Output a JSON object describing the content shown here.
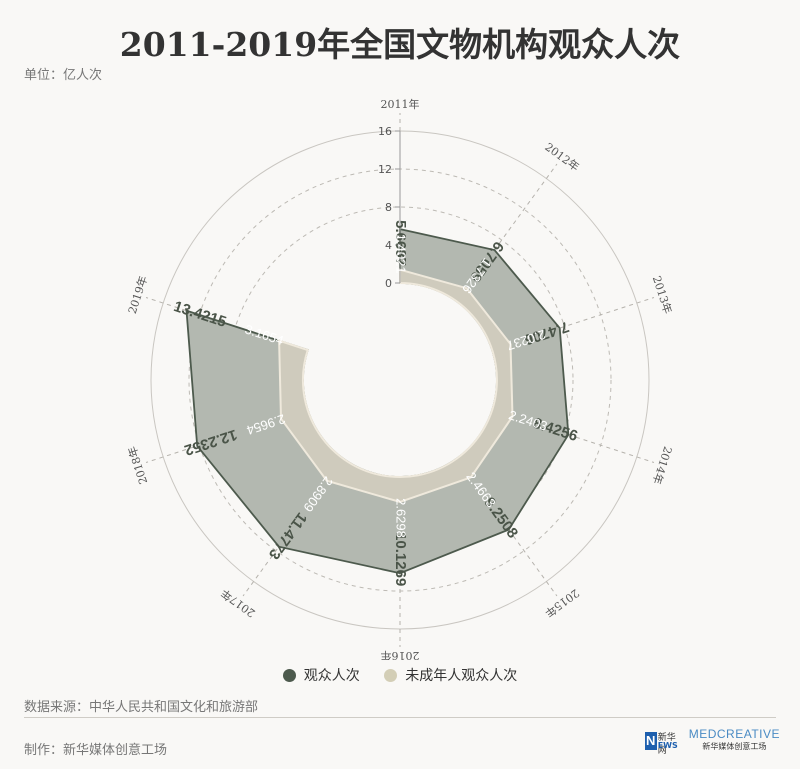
{
  "title": "2011-2019年全国文物机构观众人次",
  "unit": "单位：亿人次",
  "legend": {
    "series1": "观众人次",
    "series2": "未成年人观众人次"
  },
  "source": "数据来源：中华人民共和国文化和旅游部",
  "maker": "制作：新华媒体创意工场",
  "logos": {
    "news_text": "新华网",
    "news_letter": "N",
    "news_sub": "EWS",
    "media_big": "MEDCREATIVE",
    "media_small": "新华媒体创意工场"
  },
  "colors": {
    "total_fill": "#b3b8b0",
    "total_stroke": "#4d5a4d",
    "minor_fill": "#cfcbbd",
    "minor_stroke": "#efe9dc",
    "legend_total": "#4d5a4d",
    "legend_minor": "#d3ceb6"
  },
  "chart_data": {
    "type": "radial bar",
    "categories": [
      "2011年",
      "2012年",
      "2013年",
      "2014年",
      "2015年",
      "2016年",
      "2017年",
      "2018年",
      "2019年"
    ],
    "series": [
      {
        "name": "观众人次",
        "values": [
          5.6687,
          6.7059,
          7.4706,
          8.4256,
          9.2508,
          10.1269,
          11.4773,
          12.2352,
          13.4215
        ]
      },
      {
        "name": "未成年人观众人次",
        "values": [
          1.4021,
          1.7326,
          2.0237,
          2.2403,
          2.4663,
          2.6298,
          2.8909,
          2.9654,
          3.1654
        ]
      }
    ],
    "value_labels": {
      "total": [
        "5.6687",
        "6.7059",
        "7.4706",
        "8.4256",
        "9.2508",
        "10.1269",
        "11.4773",
        "12.2352",
        "13.4215"
      ],
      "minor": [
        "1.4021",
        "1.7326",
        "2.0237",
        "2.2403",
        "2.4663",
        "2.6298",
        "2.8909",
        "2.9654",
        "3.1654"
      ]
    },
    "radial_ticks": [
      0,
      4,
      8,
      12,
      16
    ],
    "radial_range": [
      0,
      16
    ]
  }
}
